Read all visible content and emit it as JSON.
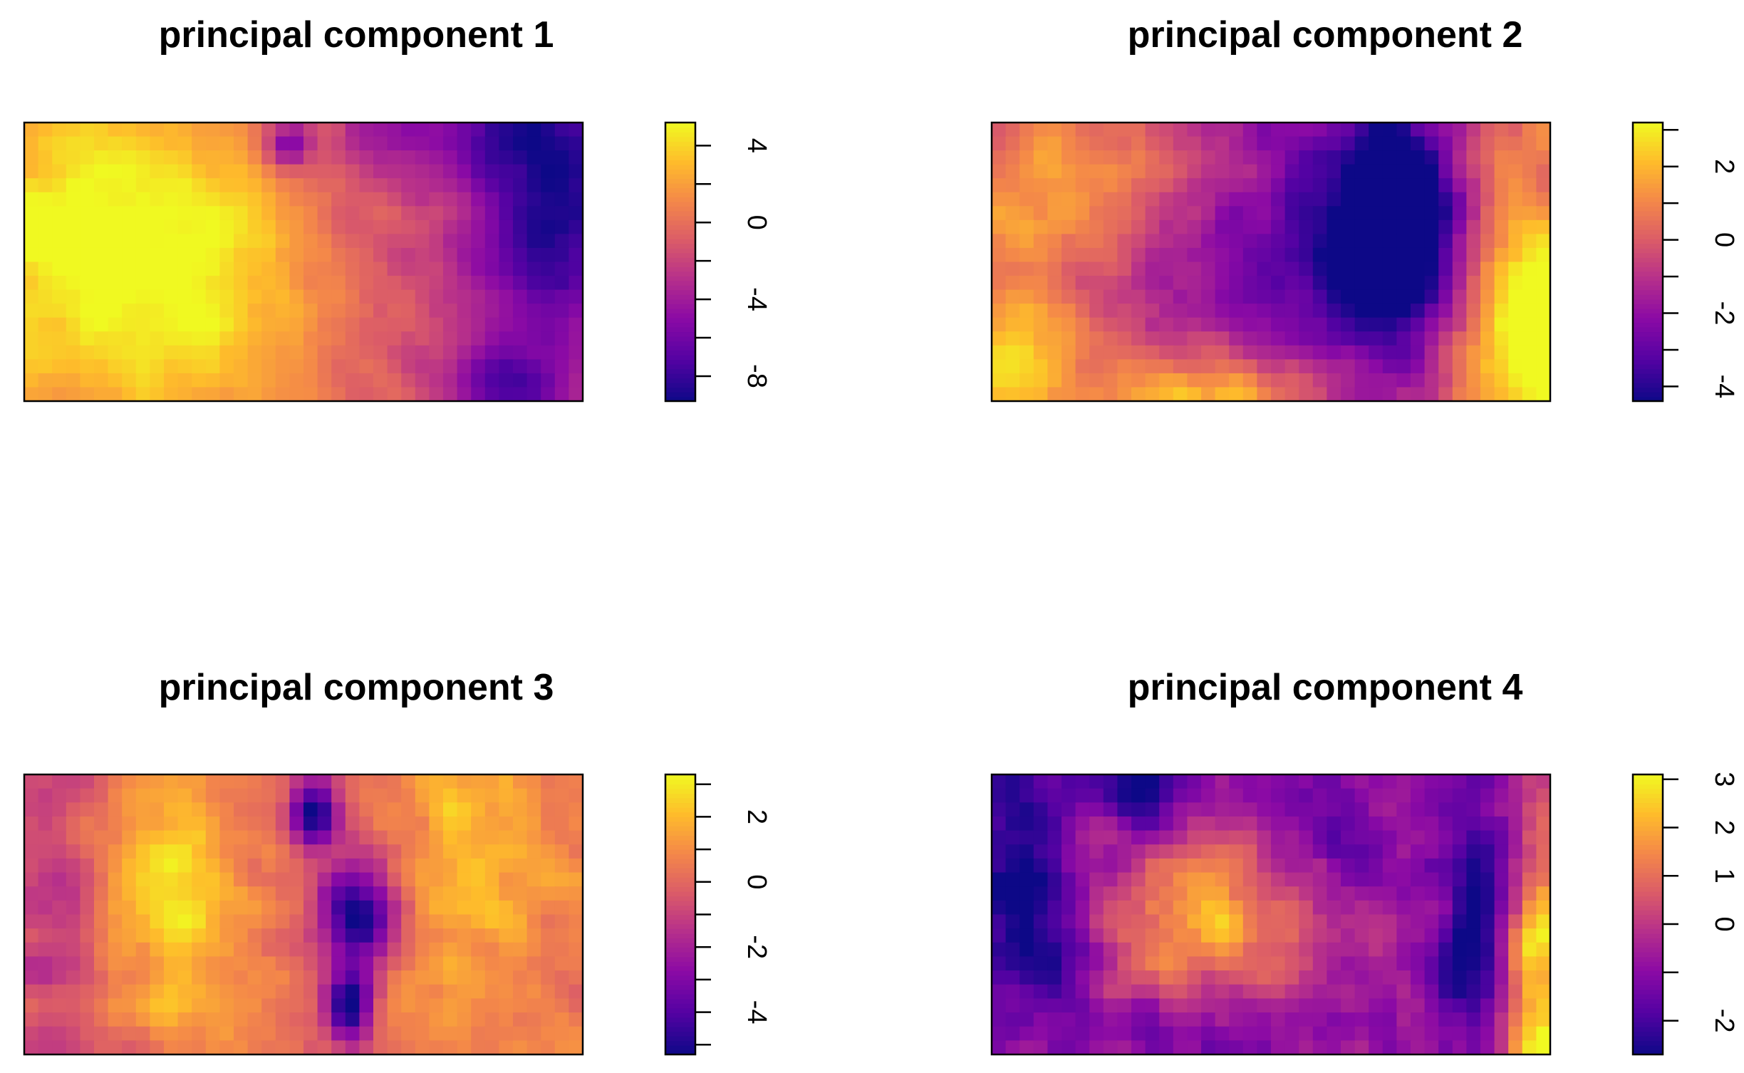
{
  "chart_data": [
    {
      "type": "heatmap",
      "title": "principal component 1",
      "legend_ticks": [
        "4",
        "0",
        "-4",
        "-8"
      ],
      "legend_tick_values": [
        4,
        0,
        -4,
        -8
      ],
      "legend_range": [
        -9.3,
        5.2
      ],
      "seed": 11,
      "field": [
        {
          "cx": 0.28,
          "cy": 0.55,
          "sx": 0.22,
          "sy": 0.35,
          "a": 3.5
        },
        {
          "cx": 0.08,
          "cy": 0.3,
          "sx": 0.18,
          "sy": 0.4,
          "a": 2.5
        },
        {
          "cx": 0.62,
          "cy": 0.5,
          "sx": 0.12,
          "sy": 0.5,
          "a": -2.5
        },
        {
          "cx": 0.95,
          "cy": 0.35,
          "sx": 0.12,
          "sy": 0.4,
          "a": -9.5
        },
        {
          "cx": 0.86,
          "cy": 0.96,
          "sx": 0.08,
          "sy": 0.12,
          "a": -6
        },
        {
          "cx": 0.78,
          "cy": 0.03,
          "sx": 0.16,
          "sy": 0.12,
          "a": -4
        },
        {
          "cx": 0.47,
          "cy": 0.08,
          "sx": 0.03,
          "sy": 0.06,
          "a": -6
        }
      ],
      "base": 0.8,
      "noise": 1.0
    },
    {
      "type": "heatmap",
      "title": "principal component 2",
      "legend_ticks": [
        "2",
        "0",
        "-2",
        "-4"
      ],
      "legend_tick_values": [
        2,
        0,
        -2,
        -4
      ],
      "legend_range": [
        -4.4,
        3.2
      ],
      "seed": 23,
      "field": [
        {
          "cx": 0.72,
          "cy": 0.4,
          "sx": 0.08,
          "sy": 0.28,
          "a": -5.5
        },
        {
          "cx": 0.62,
          "cy": 0.3,
          "sx": 0.16,
          "sy": 0.45,
          "a": -2.5
        },
        {
          "cx": 0.97,
          "cy": 0.75,
          "sx": 0.08,
          "sy": 0.4,
          "a": 4
        },
        {
          "cx": 0.03,
          "cy": 0.9,
          "sx": 0.08,
          "sy": 0.18,
          "a": 3
        },
        {
          "cx": 0.38,
          "cy": 0.98,
          "sx": 0.12,
          "sy": 0.1,
          "a": 2.5
        },
        {
          "cx": 0.12,
          "cy": 0.25,
          "sx": 0.12,
          "sy": 0.2,
          "a": 1.5
        },
        {
          "cx": 0.42,
          "cy": 0.6,
          "sx": 0.12,
          "sy": 0.2,
          "a": -1.5
        }
      ],
      "base": 0.0,
      "noise": 0.7
    },
    {
      "type": "heatmap",
      "title": "principal component 3",
      "legend_ticks": [
        "2",
        "0",
        "-2",
        "-4"
      ],
      "legend_tick_values": [
        2,
        0,
        -2,
        -4
      ],
      "legend_range": [
        -5.3,
        3.3
      ],
      "seed": 37,
      "field": [
        {
          "cx": 0.6,
          "cy": 0.5,
          "sx": 0.05,
          "sy": 0.12,
          "a": -6
        },
        {
          "cx": 0.52,
          "cy": 0.15,
          "sx": 0.03,
          "sy": 0.08,
          "a": -6
        },
        {
          "cx": 0.58,
          "cy": 0.82,
          "sx": 0.03,
          "sy": 0.1,
          "a": -6
        },
        {
          "cx": 0.27,
          "cy": 0.45,
          "sx": 0.08,
          "sy": 0.35,
          "a": 2.5
        },
        {
          "cx": 0.8,
          "cy": 0.4,
          "sx": 0.1,
          "sy": 0.4,
          "a": 1.8
        },
        {
          "cx": 0.05,
          "cy": 0.6,
          "sx": 0.06,
          "sy": 0.35,
          "a": -1.5
        }
      ],
      "base": 0.2,
      "noise": 0.8
    },
    {
      "type": "heatmap",
      "title": "principal component 4",
      "legend_ticks": [
        "3",
        "2",
        "1",
        "0",
        "-2"
      ],
      "legend_tick_values": [
        3,
        2,
        1,
        0,
        -2
      ],
      "legend_range": [
        -2.7,
        3.1
      ],
      "seed": 53,
      "field": [
        {
          "cx": 0.4,
          "cy": 0.55,
          "sx": 0.12,
          "sy": 0.25,
          "a": 2.8
        },
        {
          "cx": 0.97,
          "cy": 0.75,
          "sx": 0.06,
          "sy": 0.4,
          "a": 4
        },
        {
          "cx": 0.88,
          "cy": 0.55,
          "sx": 0.05,
          "sy": 0.35,
          "a": -3.5
        },
        {
          "cx": 0.06,
          "cy": 0.45,
          "sx": 0.08,
          "sy": 0.3,
          "a": -2.5
        },
        {
          "cx": 0.27,
          "cy": 0.05,
          "sx": 0.05,
          "sy": 0.12,
          "a": -2.5
        },
        {
          "cx": 0.4,
          "cy": 0.9,
          "sx": 0.15,
          "sy": 0.12,
          "a": -1.5
        },
        {
          "cx": 0.6,
          "cy": 0.2,
          "sx": 0.12,
          "sy": 0.2,
          "a": -1
        }
      ],
      "base": -0.5,
      "noise": 0.75
    }
  ]
}
